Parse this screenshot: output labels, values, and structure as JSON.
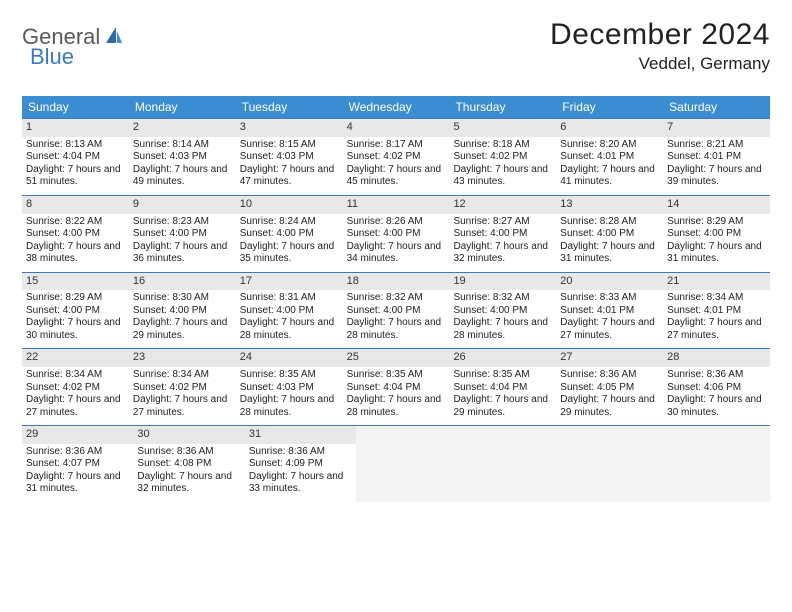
{
  "brand": {
    "part1": "General",
    "part2": "Blue"
  },
  "title": "December 2024",
  "location": "Veddel, Germany",
  "colors": {
    "header_bg": "#3a8dd0",
    "header_text": "#ffffff",
    "row_divider": "#3a7bbf",
    "daynum_bg": "#e8e8e8",
    "empty_bg": "#f4f4f4",
    "logo_gray": "#5a5a5a",
    "logo_blue": "#3a7bbf"
  },
  "weekdays": [
    "Sunday",
    "Monday",
    "Tuesday",
    "Wednesday",
    "Thursday",
    "Friday",
    "Saturday"
  ],
  "weeks": [
    [
      {
        "n": "1",
        "sr": "8:13 AM",
        "ss": "4:04 PM",
        "dl": "7 hours and 51 minutes."
      },
      {
        "n": "2",
        "sr": "8:14 AM",
        "ss": "4:03 PM",
        "dl": "7 hours and 49 minutes."
      },
      {
        "n": "3",
        "sr": "8:15 AM",
        "ss": "4:03 PM",
        "dl": "7 hours and 47 minutes."
      },
      {
        "n": "4",
        "sr": "8:17 AM",
        "ss": "4:02 PM",
        "dl": "7 hours and 45 minutes."
      },
      {
        "n": "5",
        "sr": "8:18 AM",
        "ss": "4:02 PM",
        "dl": "7 hours and 43 minutes."
      },
      {
        "n": "6",
        "sr": "8:20 AM",
        "ss": "4:01 PM",
        "dl": "7 hours and 41 minutes."
      },
      {
        "n": "7",
        "sr": "8:21 AM",
        "ss": "4:01 PM",
        "dl": "7 hours and 39 minutes."
      }
    ],
    [
      {
        "n": "8",
        "sr": "8:22 AM",
        "ss": "4:00 PM",
        "dl": "7 hours and 38 minutes."
      },
      {
        "n": "9",
        "sr": "8:23 AM",
        "ss": "4:00 PM",
        "dl": "7 hours and 36 minutes."
      },
      {
        "n": "10",
        "sr": "8:24 AM",
        "ss": "4:00 PM",
        "dl": "7 hours and 35 minutes."
      },
      {
        "n": "11",
        "sr": "8:26 AM",
        "ss": "4:00 PM",
        "dl": "7 hours and 34 minutes."
      },
      {
        "n": "12",
        "sr": "8:27 AM",
        "ss": "4:00 PM",
        "dl": "7 hours and 32 minutes."
      },
      {
        "n": "13",
        "sr": "8:28 AM",
        "ss": "4:00 PM",
        "dl": "7 hours and 31 minutes."
      },
      {
        "n": "14",
        "sr": "8:29 AM",
        "ss": "4:00 PM",
        "dl": "7 hours and 31 minutes."
      }
    ],
    [
      {
        "n": "15",
        "sr": "8:29 AM",
        "ss": "4:00 PM",
        "dl": "7 hours and 30 minutes."
      },
      {
        "n": "16",
        "sr": "8:30 AM",
        "ss": "4:00 PM",
        "dl": "7 hours and 29 minutes."
      },
      {
        "n": "17",
        "sr": "8:31 AM",
        "ss": "4:00 PM",
        "dl": "7 hours and 28 minutes."
      },
      {
        "n": "18",
        "sr": "8:32 AM",
        "ss": "4:00 PM",
        "dl": "7 hours and 28 minutes."
      },
      {
        "n": "19",
        "sr": "8:32 AM",
        "ss": "4:00 PM",
        "dl": "7 hours and 28 minutes."
      },
      {
        "n": "20",
        "sr": "8:33 AM",
        "ss": "4:01 PM",
        "dl": "7 hours and 27 minutes."
      },
      {
        "n": "21",
        "sr": "8:34 AM",
        "ss": "4:01 PM",
        "dl": "7 hours and 27 minutes."
      }
    ],
    [
      {
        "n": "22",
        "sr": "8:34 AM",
        "ss": "4:02 PM",
        "dl": "7 hours and 27 minutes."
      },
      {
        "n": "23",
        "sr": "8:34 AM",
        "ss": "4:02 PM",
        "dl": "7 hours and 27 minutes."
      },
      {
        "n": "24",
        "sr": "8:35 AM",
        "ss": "4:03 PM",
        "dl": "7 hours and 28 minutes."
      },
      {
        "n": "25",
        "sr": "8:35 AM",
        "ss": "4:04 PM",
        "dl": "7 hours and 28 minutes."
      },
      {
        "n": "26",
        "sr": "8:35 AM",
        "ss": "4:04 PM",
        "dl": "7 hours and 29 minutes."
      },
      {
        "n": "27",
        "sr": "8:36 AM",
        "ss": "4:05 PM",
        "dl": "7 hours and 29 minutes."
      },
      {
        "n": "28",
        "sr": "8:36 AM",
        "ss": "4:06 PM",
        "dl": "7 hours and 30 minutes."
      }
    ],
    [
      {
        "n": "29",
        "sr": "8:36 AM",
        "ss": "4:07 PM",
        "dl": "7 hours and 31 minutes."
      },
      {
        "n": "30",
        "sr": "8:36 AM",
        "ss": "4:08 PM",
        "dl": "7 hours and 32 minutes."
      },
      {
        "n": "31",
        "sr": "8:36 AM",
        "ss": "4:09 PM",
        "dl": "7 hours and 33 minutes."
      },
      null,
      null,
      null,
      null
    ]
  ],
  "labels": {
    "sunrise": "Sunrise:",
    "sunset": "Sunset:",
    "daylight": "Daylight:"
  }
}
